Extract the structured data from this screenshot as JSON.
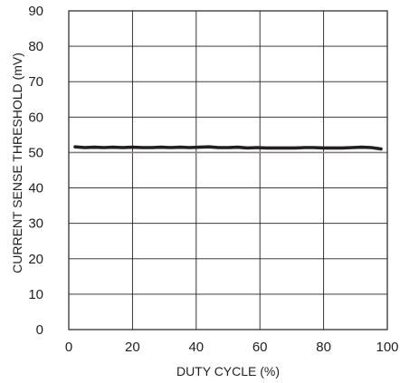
{
  "chart_data": {
    "type": "line",
    "title": "",
    "xlabel": "DUTY CYCLE (%)",
    "ylabel": "CURRENT SENSE THRESHOLD (mV)",
    "xlim": [
      0,
      100
    ],
    "ylim": [
      0,
      90
    ],
    "x_ticks": [
      "0",
      "20",
      "40",
      "60",
      "80",
      "100"
    ],
    "y_ticks": [
      "0",
      "10",
      "20",
      "30",
      "40",
      "50",
      "60",
      "70",
      "80",
      "90"
    ],
    "grid": true,
    "legend": "none",
    "series": [
      {
        "color": "#231f20",
        "x": [
          2,
          5,
          8,
          11,
          14,
          17,
          20,
          23,
          26,
          29,
          32,
          35,
          38,
          41,
          44,
          47,
          50,
          53,
          56,
          59,
          62,
          65,
          68,
          71,
          74,
          77,
          80,
          83,
          86,
          89,
          92,
          95,
          98
        ],
        "y": [
          51.6,
          51.4,
          51.5,
          51.4,
          51.5,
          51.4,
          51.5,
          51.4,
          51.4,
          51.5,
          51.4,
          51.5,
          51.4,
          51.5,
          51.6,
          51.4,
          51.4,
          51.5,
          51.3,
          51.4,
          51.3,
          51.3,
          51.3,
          51.3,
          51.4,
          51.4,
          51.3,
          51.3,
          51.3,
          51.4,
          51.5,
          51.4,
          51.0
        ]
      }
    ],
    "reference_line": {
      "y": 50,
      "color": "#808080"
    }
  }
}
